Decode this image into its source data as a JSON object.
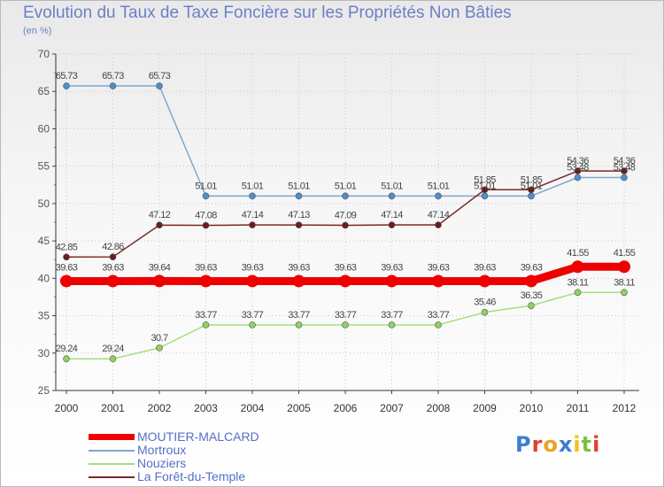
{
  "header": {
    "title": "Evolution du Taux de Taxe Foncière sur les Propriétés Non Bâties",
    "unit": "(en %)"
  },
  "logo": {
    "text": "Proxiti"
  },
  "chart_data": {
    "type": "line",
    "title": "Evolution du Taux de Taxe Foncière sur les Propriétés Non Bâties",
    "ylabel": "(en %)",
    "xlabel": "",
    "ylim": [
      25,
      70
    ],
    "yticks": [
      "25",
      "30",
      "35",
      "40",
      "45",
      "50",
      "55",
      "60",
      "65",
      "70"
    ],
    "categories": [
      "2000",
      "2001",
      "2002",
      "2003",
      "2004",
      "2005",
      "2006",
      "2007",
      "2008",
      "2009",
      "2010",
      "2011",
      "2012"
    ],
    "legend_position": "bottom-left",
    "grid": true,
    "series": [
      {
        "name": "MOUTIER-MALCARD",
        "color": "#ee0000",
        "marker": "#ee0000",
        "values": [
          39.63,
          39.63,
          39.64,
          39.63,
          39.63,
          39.63,
          39.63,
          39.63,
          39.63,
          39.63,
          39.63,
          41.55,
          41.55
        ],
        "labels": [
          "39.63",
          "39.63",
          "39.64",
          "39.63",
          "39.63",
          "39.63",
          "39.63",
          "39.63",
          "39.63",
          "39.63",
          "39.63",
          "41.55",
          "41.55"
        ]
      },
      {
        "name": "Mortroux",
        "color": "#7ea7cf",
        "marker": "#4a8fd0",
        "values": [
          65.73,
          65.73,
          65.73,
          51.01,
          51.01,
          51.01,
          51.01,
          51.01,
          51.01,
          51.01,
          51.01,
          53.48,
          53.48
        ],
        "labels": [
          "65.73",
          "65.73",
          "65.73",
          "51.01",
          "51.01",
          "51.01",
          "51.01",
          "51.01",
          "51.01",
          "51.01",
          "51.01",
          "53.48",
          "53.48"
        ]
      },
      {
        "name": "Nouziers",
        "color": "#a6de7d",
        "marker": "#8fd25c",
        "values": [
          29.24,
          29.24,
          30.7,
          33.77,
          33.77,
          33.77,
          33.77,
          33.77,
          33.77,
          35.46,
          36.35,
          38.11,
          38.11
        ],
        "labels": [
          "29.24",
          "29.24",
          "30.7",
          "33.77",
          "33.77",
          "33.77",
          "33.77",
          "33.77",
          "33.77",
          "35.46",
          "36.35",
          "38.11",
          "38.11"
        ]
      },
      {
        "name": "La Forêt-du-Temple",
        "color": "#7a2a2a",
        "marker": "#6e1b1b",
        "values": [
          42.85,
          42.86,
          47.12,
          47.08,
          47.14,
          47.13,
          47.09,
          47.14,
          47.14,
          51.85,
          51.85,
          54.36,
          54.36
        ],
        "labels": [
          "42.85",
          "42.86",
          "47.12",
          "47.08",
          "47.14",
          "47.13",
          "47.09",
          "47.14",
          "47.14",
          "51.85",
          "51.85",
          "54.36",
          "54.36"
        ]
      }
    ]
  }
}
